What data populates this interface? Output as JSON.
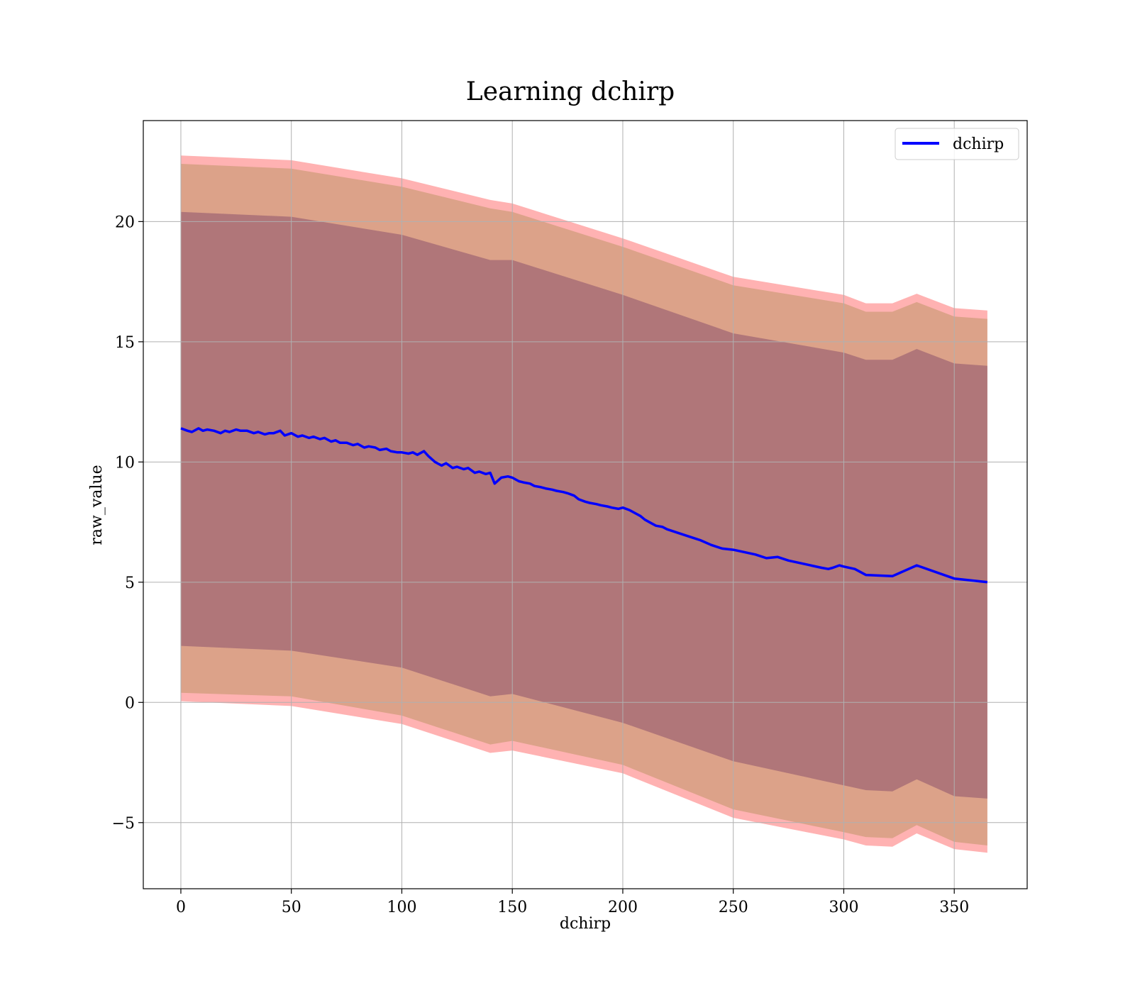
{
  "chart_data": {
    "type": "line",
    "title": "Learning dchirp",
    "xlabel": "dchirp",
    "ylabel": "raw_value",
    "xlim": [
      -17,
      383
    ],
    "ylim": [
      -7.75,
      24.2
    ],
    "xticks": [
      0,
      50,
      100,
      150,
      200,
      250,
      300,
      350
    ],
    "yticks": [
      -5,
      0,
      5,
      10,
      15,
      20
    ],
    "xtick_labels": [
      "0",
      "50",
      "100",
      "150",
      "200",
      "250",
      "300",
      "350"
    ],
    "ytick_labels": [
      "−5",
      "0",
      "5",
      "10",
      "15",
      "20"
    ],
    "grid": true,
    "legend_position": "top-right",
    "series": [
      {
        "name": "dchirp",
        "color": "#0000ff",
        "x": [
          0,
          3,
          5,
          8,
          10,
          12,
          15,
          18,
          20,
          22,
          25,
          27,
          30,
          33,
          35,
          38,
          40,
          42,
          45,
          47,
          50,
          53,
          55,
          58,
          60,
          63,
          65,
          68,
          70,
          72,
          75,
          78,
          80,
          83,
          85,
          88,
          90,
          93,
          95,
          98,
          100,
          103,
          105,
          107,
          110,
          112,
          115,
          118,
          120,
          123,
          125,
          128,
          130,
          133,
          135,
          138,
          140,
          142,
          145,
          148,
          150,
          153,
          155,
          158,
          160,
          163,
          165,
          168,
          170,
          173,
          175,
          178,
          180,
          183,
          185,
          188,
          190,
          193,
          195,
          198,
          200,
          203,
          205,
          208,
          210,
          213,
          215,
          218,
          220,
          225,
          230,
          235,
          240,
          245,
          250,
          255,
          260,
          265,
          270,
          275,
          280,
          285,
          290,
          293,
          295,
          298,
          300,
          305,
          310,
          322,
          333,
          350,
          365
        ],
        "y": [
          11.4,
          11.3,
          11.25,
          11.4,
          11.3,
          11.35,
          11.3,
          11.2,
          11.3,
          11.25,
          11.35,
          11.3,
          11.3,
          11.2,
          11.25,
          11.15,
          11.2,
          11.2,
          11.3,
          11.1,
          11.2,
          11.05,
          11.1,
          11.0,
          11.05,
          10.95,
          11.0,
          10.85,
          10.9,
          10.8,
          10.8,
          10.7,
          10.75,
          10.6,
          10.65,
          10.6,
          10.5,
          10.55,
          10.45,
          10.4,
          10.4,
          10.35,
          10.4,
          10.3,
          10.45,
          10.25,
          10.0,
          9.85,
          9.95,
          9.75,
          9.8,
          9.7,
          9.75,
          9.55,
          9.6,
          9.5,
          9.55,
          9.1,
          9.35,
          9.4,
          9.35,
          9.2,
          9.15,
          9.1,
          9.0,
          8.95,
          8.9,
          8.85,
          8.8,
          8.75,
          8.7,
          8.6,
          8.45,
          8.35,
          8.3,
          8.25,
          8.2,
          8.15,
          8.1,
          8.05,
          8.1,
          8.0,
          7.9,
          7.75,
          7.6,
          7.45,
          7.35,
          7.3,
          7.2,
          7.05,
          6.9,
          6.75,
          6.55,
          6.4,
          6.35,
          6.25,
          6.15,
          6.0,
          6.05,
          5.9,
          5.8,
          5.7,
          5.6,
          5.55,
          5.6,
          5.7,
          5.65,
          5.55,
          5.3,
          5.25,
          5.7,
          5.15,
          5.0
        ]
      }
    ],
    "bands": [
      {
        "name": "",
        "color": "#ff0000",
        "opacity": 0.3,
        "x": [
          0,
          50,
          100,
          140,
          150,
          200,
          250,
          300,
          310,
          322,
          333,
          350,
          365
        ],
        "lower": [
          0.05,
          -0.15,
          -0.9,
          -2.1,
          -2.0,
          -2.95,
          -4.8,
          -5.7,
          -5.95,
          -6.0,
          -5.45,
          -6.1,
          -6.25
        ],
        "upper": [
          22.75,
          22.55,
          21.8,
          20.9,
          20.75,
          19.3,
          17.7,
          16.95,
          16.6,
          16.6,
          17.0,
          16.4,
          16.3
        ]
      },
      {
        "name": "",
        "color": "#8b7d2a",
        "opacity": 0.3,
        "x": [
          0,
          50,
          100,
          140,
          150,
          200,
          250,
          300,
          310,
          322,
          333,
          350,
          365
        ],
        "lower": [
          0.4,
          0.25,
          -0.55,
          -1.75,
          -1.6,
          -2.6,
          -4.45,
          -5.4,
          -5.6,
          -5.65,
          -5.1,
          -5.8,
          -5.95
        ],
        "upper": [
          22.4,
          22.2,
          21.45,
          20.55,
          20.4,
          18.95,
          17.35,
          16.6,
          16.25,
          16.25,
          16.65,
          16.05,
          15.95
        ]
      },
      {
        "name": "",
        "color": "#4b0f55",
        "opacity": 0.3,
        "x": [
          0,
          50,
          100,
          140,
          150,
          200,
          250,
          300,
          310,
          322,
          333,
          350,
          365
        ],
        "lower": [
          2.35,
          2.15,
          1.45,
          0.25,
          0.35,
          -0.85,
          -2.45,
          -3.45,
          -3.65,
          -3.7,
          -3.2,
          -3.9,
          -4.0
        ],
        "upper": [
          20.4,
          20.2,
          19.45,
          18.4,
          18.4,
          16.95,
          15.35,
          14.55,
          14.25,
          14.25,
          14.7,
          14.1,
          14.0
        ]
      }
    ]
  }
}
